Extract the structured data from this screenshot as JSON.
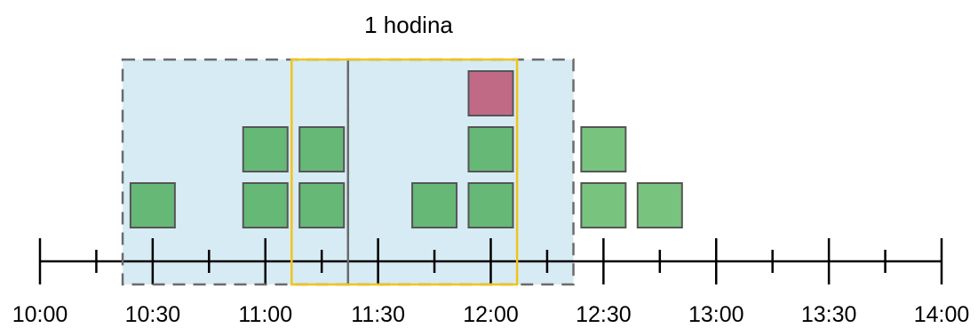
{
  "title": "1 hodina",
  "colors": {
    "background_region": "#d7ebf5",
    "dashed_border": "#6b6b6b",
    "window_border": "#f2c418",
    "box_inside": "#66b877",
    "box_outside": "#78c47f",
    "box_highlight": "#c06a86",
    "box_stroke": "#555555",
    "axis": "#000000"
  },
  "axis": {
    "labels": [
      "10:00",
      "10:30",
      "11:00",
      "11:30",
      "12:00",
      "12:30",
      "13:00",
      "13:30",
      "14:00"
    ]
  },
  "events": [
    {
      "time": "10:30",
      "stack_level": 0,
      "kind": "inside"
    },
    {
      "time": "11:00",
      "stack_level": 0,
      "kind": "inside"
    },
    {
      "time": "11:00",
      "stack_level": 1,
      "kind": "inside"
    },
    {
      "time": "11:15",
      "stack_level": 0,
      "kind": "inside"
    },
    {
      "time": "11:15",
      "stack_level": 1,
      "kind": "inside"
    },
    {
      "time": "11:45",
      "stack_level": 0,
      "kind": "inside"
    },
    {
      "time": "12:00",
      "stack_level": 0,
      "kind": "inside"
    },
    {
      "time": "12:00",
      "stack_level": 1,
      "kind": "inside"
    },
    {
      "time": "12:00",
      "stack_level": 2,
      "kind": "highlight"
    },
    {
      "time": "12:30",
      "stack_level": 0,
      "kind": "outside"
    },
    {
      "time": "12:30",
      "stack_level": 1,
      "kind": "outside"
    },
    {
      "time": "12:45",
      "stack_level": 0,
      "kind": "outside"
    }
  ],
  "regions": {
    "dashed_window_1": {
      "start": "10:22",
      "end": "11:22"
    },
    "dashed_window_2": {
      "start": "11:22",
      "end": "12:22"
    },
    "selected_window": {
      "start": "11:07",
      "end": "12:07"
    }
  }
}
